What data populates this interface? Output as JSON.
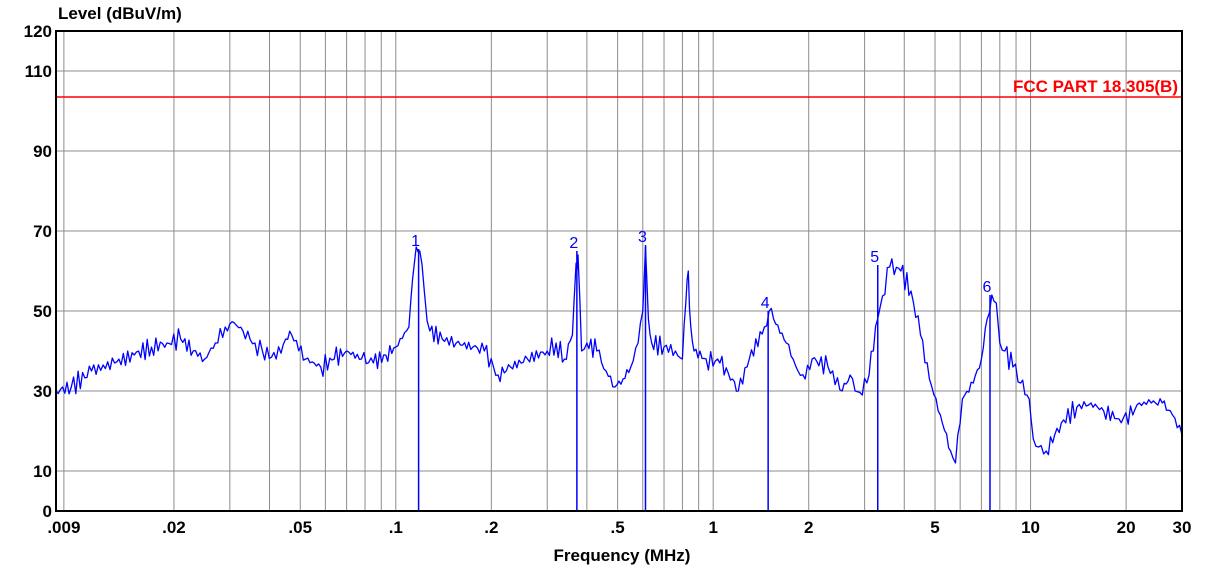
{
  "chart_data": {
    "type": "line",
    "ylabel": "Level (dBuV/m)",
    "xlabel": "Frequency (MHz)",
    "x_scale": "log",
    "xlim": [
      0.0085,
      30
    ],
    "ylim": [
      0,
      120
    ],
    "grid": true,
    "y_tick_labels": [
      {
        "value": 0,
        "label": "0"
      },
      {
        "value": 10,
        "label": "10"
      },
      {
        "value": 30,
        "label": "30"
      },
      {
        "value": 50,
        "label": "50"
      },
      {
        "value": 70,
        "label": "70"
      },
      {
        "value": 90,
        "label": "90"
      },
      {
        "value": 110,
        "label": "110"
      },
      {
        "value": 120,
        "label": "120"
      }
    ],
    "y_gridlines": [
      10,
      30,
      50,
      70,
      90,
      110
    ],
    "x_tick_labels": [
      {
        "value": 0.009,
        "label": ".009"
      },
      {
        "value": 0.02,
        "label": ".02"
      },
      {
        "value": 0.05,
        "label": ".05"
      },
      {
        "value": 0.1,
        "label": ".1"
      },
      {
        "value": 0.2,
        "label": ".2"
      },
      {
        "value": 0.5,
        "label": ".5"
      },
      {
        "value": 1,
        "label": "1"
      },
      {
        "value": 2,
        "label": "2"
      },
      {
        "value": 5,
        "label": "5"
      },
      {
        "value": 10,
        "label": "10"
      },
      {
        "value": 20,
        "label": "20"
      },
      {
        "value": 30,
        "label": "30"
      }
    ],
    "x_gridlines": [
      0.009,
      0.02,
      0.03,
      0.04,
      0.05,
      0.06,
      0.07,
      0.08,
      0.09,
      0.1,
      0.2,
      0.3,
      0.4,
      0.5,
      0.6,
      0.7,
      0.8,
      0.9,
      1,
      2,
      3,
      4,
      5,
      6,
      7,
      8,
      9,
      10,
      20
    ],
    "limit_line": {
      "name": "FCC PART 18.305(B)",
      "level": 103.5,
      "color": "#ff0000"
    },
    "trace_color": "#0000ff",
    "series": [
      {
        "x": [
          0.0085,
          0.0095,
          0.011,
          0.013,
          0.015,
          0.017,
          0.019,
          0.021,
          0.023,
          0.025,
          0.027,
          0.029,
          0.031,
          0.033,
          0.036,
          0.038,
          0.042,
          0.045,
          0.047,
          0.052,
          0.058,
          0.064,
          0.07,
          0.078,
          0.085,
          0.093,
          0.1,
          0.11,
          0.113,
          0.116,
          0.119,
          0.123,
          0.128,
          0.14,
          0.155,
          0.175,
          0.19,
          0.21,
          0.23,
          0.26,
          0.3,
          0.32,
          0.34,
          0.36,
          0.37,
          0.375,
          0.385,
          0.4,
          0.43,
          0.46,
          0.49,
          0.52,
          0.55,
          0.58,
          0.6,
          0.612,
          0.625,
          0.64,
          0.7,
          0.76,
          0.8,
          0.82,
          0.835,
          0.85,
          0.87,
          0.95,
          1.05,
          1.15,
          1.2,
          1.3,
          1.45,
          1.5,
          1.55,
          1.7,
          1.85,
          1.95,
          2.05,
          2.3,
          2.55,
          2.7,
          2.8,
          2.95,
          3.05,
          3.3,
          3.6,
          3.9,
          4.2,
          4.5,
          4.8,
          5.2,
          5.6,
          5.8,
          6.1,
          6.6,
          7.0,
          7.3,
          7.55,
          7.8,
          8.0,
          8.3,
          8.8,
          9.3,
          9.9,
          10.2,
          10.6,
          11.2,
          12.5,
          14,
          15.5,
          17,
          19,
          21,
          22,
          24,
          26,
          28,
          30
        ],
        "y": [
          30,
          31,
          35,
          37,
          39,
          41,
          42,
          43,
          40,
          38,
          42,
          46,
          47,
          45,
          42,
          40,
          38,
          43,
          44,
          38,
          36,
          38,
          40,
          38,
          37,
          39,
          41,
          46,
          58,
          66,
          65,
          55,
          45,
          43,
          42,
          41,
          40,
          34,
          36,
          38,
          40,
          42,
          38,
          44,
          62,
          64,
          40,
          42,
          40,
          35,
          31,
          33,
          36,
          42,
          50,
          66,
          48,
          42,
          41,
          40,
          38,
          52,
          60,
          46,
          40,
          38,
          37,
          33,
          30,
          38,
          46,
          50,
          48,
          42,
          35,
          33,
          38,
          36,
          30,
          34,
          30,
          29,
          32,
          48,
          61,
          60,
          55,
          44,
          33,
          24,
          15,
          12,
          28,
          32,
          38,
          48,
          54,
          52,
          42,
          40,
          36,
          32,
          28,
          18,
          16,
          15,
          22,
          26,
          27,
          25,
          23,
          24,
          27,
          27,
          27,
          24,
          19
        ]
      }
    ],
    "markers": [
      {
        "label": "1",
        "x": 0.118,
        "y": 65.5
      },
      {
        "label": "2",
        "x": 0.372,
        "y": 65
      },
      {
        "label": "3",
        "x": 0.612,
        "y": 66.5
      },
      {
        "label": "4",
        "x": 1.49,
        "y": 50
      },
      {
        "label": "5",
        "x": 3.3,
        "y": 61.5
      },
      {
        "label": "6",
        "x": 7.45,
        "y": 54
      }
    ]
  }
}
